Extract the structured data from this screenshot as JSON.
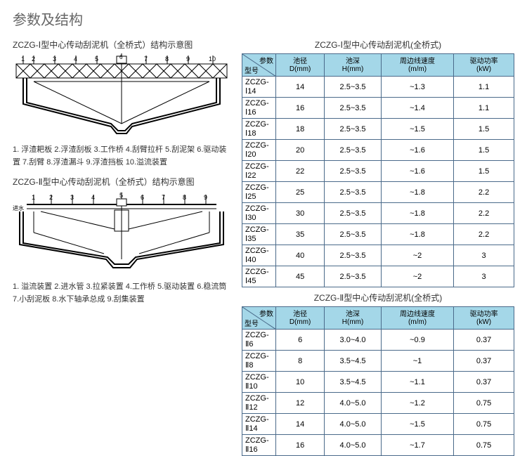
{
  "title": "参数及结构",
  "diagram1": {
    "title": "ZCZG-Ⅰ型中心传动刮泥机（全桥式）结构示意图",
    "legend": "1. 浮渣耙板 2.浮渣刮板 3.工作桥 4.刮臂拉杆 5.刮泥架 6.驱动装置 7.刮臂 8.浮渣漏斗 9.浮渣挡板 10.溢流装置"
  },
  "diagram2": {
    "title": "ZCZG-Ⅱ型中心传动刮泥机（全桥式）结构示意图",
    "legend": "1. 溢流装置 2.进水管 3.拉紧装置 4.工作桥 5.驱动装置 6.稳流筒 7.小刮泥板 8.水下轴承总成 9.刮集装置"
  },
  "table1": {
    "title": "ZCZG-Ⅰ型中心传动刮泥机(全桥式)",
    "corner_p": "参数",
    "corner_m": "型号",
    "columns": [
      {
        "l1": "池径",
        "l2": "D(mm)"
      },
      {
        "l1": "池深",
        "l2": "H(mm)"
      },
      {
        "l1": "周边线速度",
        "l2": "(m/m)"
      },
      {
        "l1": "驱动功率",
        "l2": "(kW)"
      }
    ],
    "rows": [
      [
        "ZCZG-Ⅰ14",
        "14",
        "2.5~3.5",
        "~1.3",
        "1.1"
      ],
      [
        "ZCZG-Ⅰ16",
        "16",
        "2.5~3.5",
        "~1.4",
        "1.1"
      ],
      [
        "ZCZG-Ⅰ18",
        "18",
        "2.5~3.5",
        "~1.5",
        "1.5"
      ],
      [
        "ZCZG-Ⅰ20",
        "20",
        "2.5~3.5",
        "~1.6",
        "1.5"
      ],
      [
        "ZCZG-Ⅰ22",
        "22",
        "2.5~3.5",
        "~1.6",
        "1.5"
      ],
      [
        "ZCZG-Ⅰ25",
        "25",
        "2.5~3.5",
        "~1.8",
        "2.2"
      ],
      [
        "ZCZG-Ⅰ30",
        "30",
        "2.5~3.5",
        "~1.8",
        "2.2"
      ],
      [
        "ZCZG-Ⅰ35",
        "35",
        "2.5~3.5",
        "~1.8",
        "2.2"
      ],
      [
        "ZCZG-Ⅰ40",
        "40",
        "2.5~3.5",
        "~2",
        "3"
      ],
      [
        "ZCZG-Ⅰ45",
        "45",
        "2.5~3.5",
        "~2",
        "3"
      ]
    ]
  },
  "table2": {
    "title": "ZCZG-Ⅱ型中心传动刮泥机(全桥式)",
    "corner_p": "参数",
    "corner_m": "型号",
    "columns": [
      {
        "l1": "池径",
        "l2": "D(mm)"
      },
      {
        "l1": "池深",
        "l2": "H(mm)"
      },
      {
        "l1": "周边线速度",
        "l2": "(m/m)"
      },
      {
        "l1": "驱动功率",
        "l2": "(kW)"
      }
    ],
    "rows": [
      [
        "ZCZG-Ⅱ6",
        "6",
        "3.0~4.0",
        "~0.9",
        "0.37"
      ],
      [
        "ZCZG-Ⅱ8",
        "8",
        "3.5~4.5",
        "~1",
        "0.37"
      ],
      [
        "ZCZG-Ⅱ10",
        "10",
        "3.5~4.5",
        "~1.1",
        "0.37"
      ],
      [
        "ZCZG-Ⅱ12",
        "12",
        "4.0~5.0",
        "~1.2",
        "0.75"
      ],
      [
        "ZCZG-Ⅱ14",
        "14",
        "4.0~5.0",
        "~1.5",
        "0.75"
      ],
      [
        "ZCZG-Ⅱ16",
        "16",
        "4.0~5.0",
        "~1.7",
        "0.75"
      ]
    ]
  }
}
